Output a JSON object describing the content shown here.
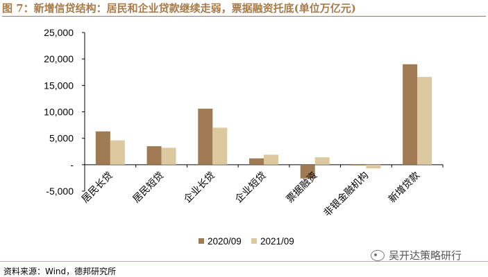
{
  "title": "图 7：新增信贷结构：居民和企业贷款继续走弱，票据融资托底(单位万亿元)",
  "source": "资料来源：Wind，德邦研究所",
  "watermark": "吴开达策略研行",
  "colors": {
    "series_2020": "#a07a52",
    "series_2021": "#dcc9a0",
    "accent": "#a87a46"
  },
  "chart_data": {
    "type": "bar",
    "categories": [
      "居民长贷",
      "居民短贷",
      "企业长贷",
      "企业短贷",
      "票据融资",
      "非银金融机构",
      "新增贷款"
    ],
    "series": [
      {
        "name": "2020/09",
        "values": [
          6300,
          3500,
          10600,
          1200,
          -2600,
          -100,
          19000
        ]
      },
      {
        "name": "2021/09",
        "values": [
          4600,
          3200,
          7000,
          1900,
          1400,
          -700,
          16600
        ]
      }
    ],
    "yticks": [
      "-5,000",
      "-",
      "5,000",
      "10,000",
      "15,000",
      "20,000",
      "25,000"
    ],
    "ylim": [
      -5000,
      25000
    ],
    "legend_position": "bottom"
  }
}
